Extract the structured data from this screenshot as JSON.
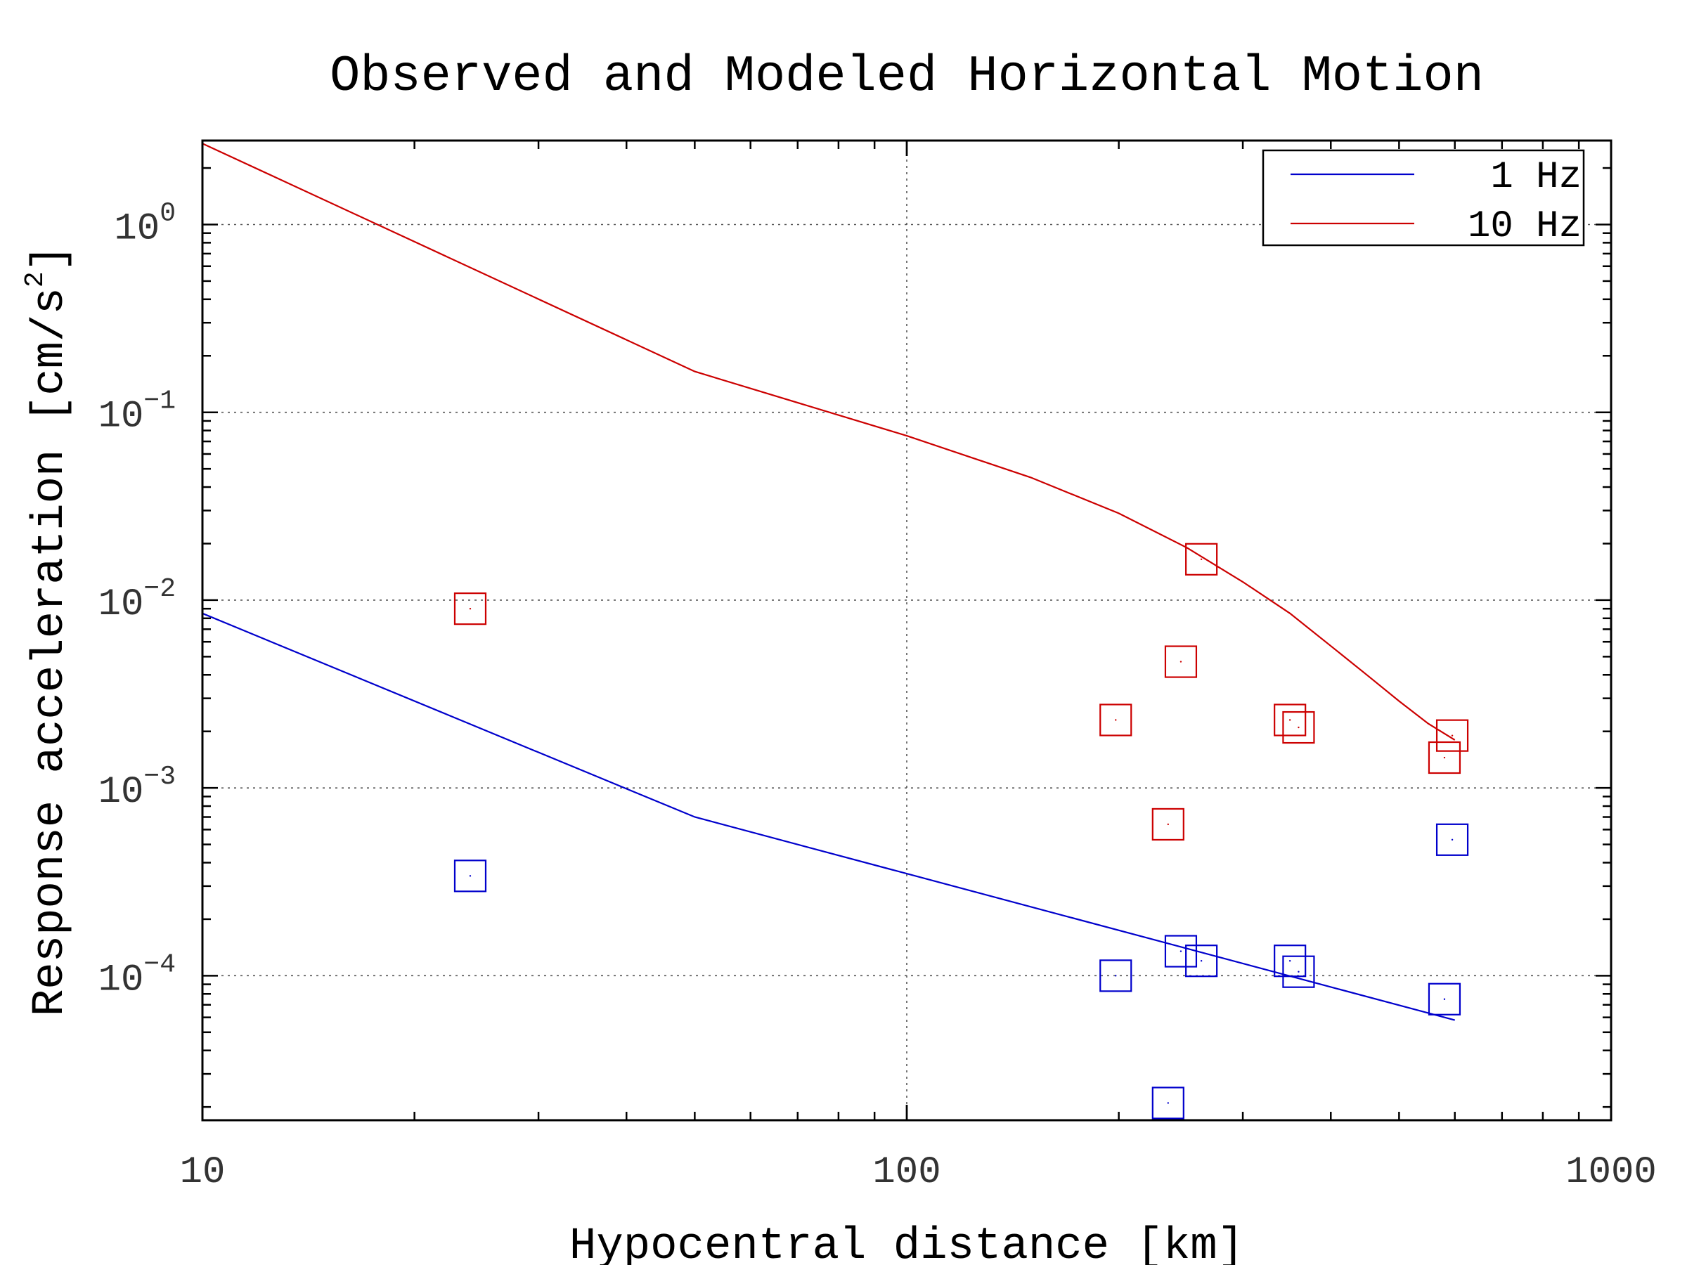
{
  "chart_data": {
    "type": "scatter",
    "title": "Observed and Modeled Horizontal Motion",
    "xlabel": "Hypocentral distance [km]",
    "ylabel": "Response acceleration [cm/s²]",
    "xscale": "log",
    "yscale": "log",
    "xlim": [
      10,
      1000
    ],
    "ylim": [
      1.7e-05,
      2.8
    ],
    "x_ticks": [
      10,
      100,
      1000
    ],
    "x_tick_labels": [
      "10",
      "100",
      "1000"
    ],
    "y_ticks": [
      {
        "value": 1,
        "base": "10",
        "exp": "0"
      },
      {
        "value": 0.1,
        "base": "10",
        "exp": "−1"
      },
      {
        "value": 0.01,
        "base": "10",
        "exp": "−2"
      },
      {
        "value": 0.001,
        "base": "10",
        "exp": "−3"
      },
      {
        "value": 0.0001,
        "base": "10",
        "exp": "−4"
      }
    ],
    "ylabel_parts": {
      "main": "Response acceleration [cm/s",
      "sup": "2",
      "end": "]"
    },
    "grid": true,
    "legend_position": "top-right",
    "series": [
      {
        "name": "1 Hz",
        "color": "#0000cc",
        "line": {
          "x": [
            10,
            50,
            600
          ],
          "y": [
            0.0085,
            0.0007,
            5.8e-05
          ]
        },
        "points": {
          "x": [
            24,
            198,
            235,
            245,
            262,
            350,
            360,
            580,
            595
          ],
          "y": [
            0.00034,
            0.0001,
            2.1e-05,
            0.000135,
            0.00012,
            0.00012,
            0.000105,
            7.5e-05,
            0.00053
          ]
        }
      },
      {
        "name": "10 Hz",
        "color": "#cc0000",
        "line": {
          "x": [
            10,
            50,
            100,
            150,
            200,
            250,
            300,
            350,
            400,
            450,
            500,
            550,
            600
          ],
          "y": [
            2.7,
            0.165,
            0.075,
            0.045,
            0.029,
            0.019,
            0.0125,
            0.0085,
            0.0057,
            0.004,
            0.0029,
            0.0022,
            0.0018
          ]
        },
        "points": {
          "x": [
            24,
            198,
            235,
            245,
            262,
            350,
            360,
            580,
            595
          ],
          "y": [
            0.009,
            0.0023,
            0.00064,
            0.0047,
            0.0165,
            0.0023,
            0.0021,
            0.00145,
            0.0019
          ]
        }
      }
    ]
  }
}
